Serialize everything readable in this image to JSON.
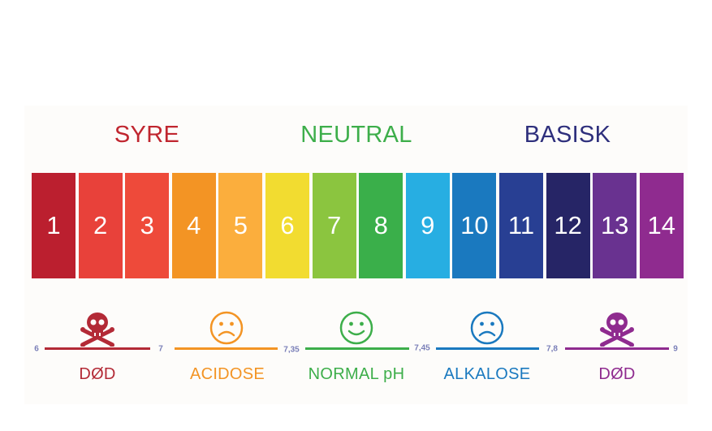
{
  "categories": [
    {
      "label": "SYRE",
      "color": "#c0262f"
    },
    {
      "label": "NEUTRAL",
      "color": "#3dae4a"
    },
    {
      "label": "BASISK",
      "color": "#2e2f7c"
    }
  ],
  "scale": [
    {
      "value": "1",
      "color": "#bb1f2f"
    },
    {
      "value": "2",
      "color": "#e8413a"
    },
    {
      "value": "3",
      "color": "#ee4a3a"
    },
    {
      "value": "4",
      "color": "#f39424"
    },
    {
      "value": "5",
      "color": "#fbae3d"
    },
    {
      "value": "6",
      "color": "#f2dc30"
    },
    {
      "value": "7",
      "color": "#8bc53f"
    },
    {
      "value": "8",
      "color": "#3aaf4a"
    },
    {
      "value": "9",
      "color": "#27aee2"
    },
    {
      "value": "10",
      "color": "#1a79bf"
    },
    {
      "value": "11",
      "color": "#283f93"
    },
    {
      "value": "12",
      "color": "#262566"
    },
    {
      "value": "13",
      "color": "#693290"
    },
    {
      "value": "14",
      "color": "#8f2b8f"
    }
  ],
  "ranges": [
    {
      "label": "DØD",
      "icon": "skull-crossbones-icon",
      "color": "#b32a36"
    },
    {
      "label": "ACIDOSE",
      "icon": "sad-face-icon",
      "color": "#f39424"
    },
    {
      "label": "NORMAL pH",
      "icon": "smile-face-icon",
      "color": "#3dae4a"
    },
    {
      "label": "ALKALOSE",
      "icon": "sad-face-icon",
      "color": "#1a79bf"
    },
    {
      "label": "DØD",
      "icon": "skull-crossbones-icon",
      "color": "#8f2b8f"
    }
  ],
  "boundaries": [
    "6",
    "7",
    "7,35",
    "7,45",
    "7,8",
    "9"
  ]
}
